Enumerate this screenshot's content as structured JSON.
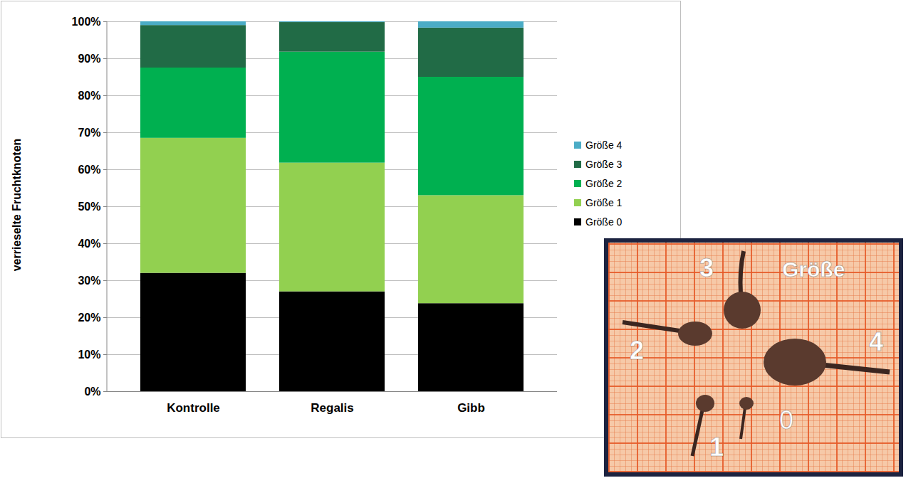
{
  "chart_data": {
    "type": "bar",
    "stacked": true,
    "ylabel": "verrieselte Fruchtknoten",
    "categories": [
      "Kontrolle",
      "Regalis",
      "Gibb"
    ],
    "series": [
      {
        "name": "Größe 0",
        "color": "#000000",
        "values": [
          32,
          27,
          23.8
        ]
      },
      {
        "name": "Größe 1",
        "color": "#92d050",
        "values": [
          36.5,
          34.8,
          29.2
        ]
      },
      {
        "name": "Größe 2",
        "color": "#00b050",
        "values": [
          19,
          30,
          32
        ]
      },
      {
        "name": "Größe 3",
        "color": "#216b46",
        "values": [
          11.5,
          8,
          13.3
        ]
      },
      {
        "name": "Größe 4",
        "color": "#4bacc6",
        "values": [
          1,
          0.2,
          1.7
        ]
      }
    ],
    "ylim": [
      0,
      100
    ],
    "yticks": [
      {
        "value": 0,
        "label": "0%"
      },
      {
        "value": 10,
        "label": "10%"
      },
      {
        "value": 20,
        "label": "20%"
      },
      {
        "value": 30,
        "label": "30%"
      },
      {
        "value": 40,
        "label": "40%"
      },
      {
        "value": 50,
        "label": "50%"
      },
      {
        "value": 60,
        "label": "60%"
      },
      {
        "value": 70,
        "label": "70%"
      },
      {
        "value": 80,
        "label": "80%"
      },
      {
        "value": 90,
        "label": "90%"
      },
      {
        "value": 100,
        "label": "100%"
      }
    ],
    "grid": true,
    "legend": "right",
    "annotations": [
      "Größe",
      "0",
      "1",
      "2",
      "3",
      "4"
    ]
  }
}
